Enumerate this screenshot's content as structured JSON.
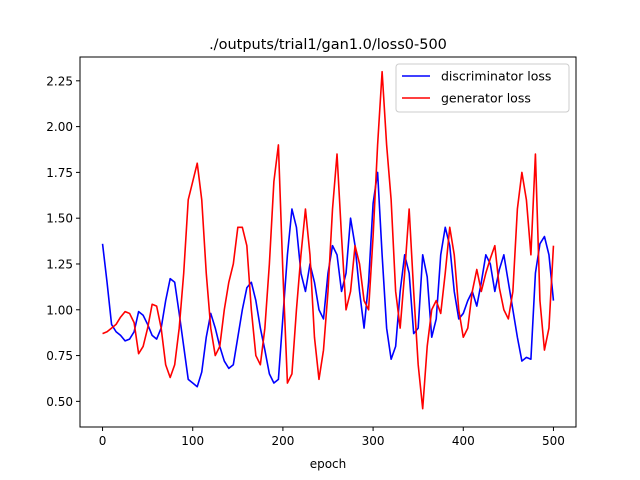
{
  "chart_data": {
    "type": "line",
    "title": "./outputs/trial1/gan1.0/loss0-500",
    "xlabel": "epoch",
    "ylabel": "",
    "xlim": [
      -25,
      525
    ],
    "ylim": [
      0.36,
      2.38
    ],
    "xticks": [
      0,
      100,
      200,
      300,
      400,
      500
    ],
    "xtick_labels": [
      "0",
      "100",
      "200",
      "300",
      "400",
      "500"
    ],
    "yticks": [
      0.5,
      0.75,
      1.0,
      1.25,
      1.5,
      1.75,
      2.0,
      2.25
    ],
    "ytick_labels": [
      "0.50",
      "0.75",
      "1.00",
      "1.25",
      "1.50",
      "1.75",
      "2.00",
      "2.25"
    ],
    "grid": false,
    "legend_position": "top-right",
    "series": [
      {
        "name": "discriminator loss",
        "color": "#0000ff",
        "x": [
          0,
          5,
          10,
          15,
          20,
          25,
          30,
          35,
          40,
          45,
          50,
          55,
          60,
          65,
          70,
          75,
          80,
          85,
          90,
          95,
          100,
          105,
          110,
          115,
          120,
          125,
          130,
          135,
          140,
          145,
          150,
          155,
          160,
          165,
          170,
          175,
          180,
          185,
          190,
          195,
          200,
          205,
          210,
          215,
          220,
          225,
          230,
          235,
          240,
          245,
          250,
          255,
          260,
          265,
          270,
          275,
          280,
          285,
          290,
          295,
          300,
          305,
          310,
          315,
          320,
          325,
          330,
          335,
          340,
          345,
          350,
          355,
          360,
          365,
          370,
          375,
          380,
          385,
          390,
          395,
          400,
          405,
          410,
          415,
          420,
          425,
          430,
          435,
          440,
          445,
          450,
          455,
          460,
          465,
          470,
          475,
          480,
          485,
          490,
          495,
          500
        ],
        "values": [
          1.36,
          1.15,
          0.92,
          0.88,
          0.86,
          0.83,
          0.84,
          0.88,
          0.99,
          0.97,
          0.92,
          0.86,
          0.84,
          0.9,
          1.05,
          1.17,
          1.15,
          0.98,
          0.8,
          0.62,
          0.6,
          0.58,
          0.66,
          0.85,
          0.98,
          0.9,
          0.8,
          0.72,
          0.68,
          0.7,
          0.85,
          1.0,
          1.12,
          1.15,
          1.05,
          0.9,
          0.78,
          0.65,
          0.6,
          0.62,
          0.96,
          1.3,
          1.55,
          1.45,
          1.2,
          1.1,
          1.25,
          1.15,
          1.0,
          0.95,
          1.2,
          1.35,
          1.3,
          1.1,
          1.2,
          1.5,
          1.35,
          1.1,
          0.9,
          1.15,
          1.58,
          1.75,
          1.3,
          0.9,
          0.73,
          0.8,
          1.1,
          1.3,
          1.2,
          0.87,
          0.9,
          1.3,
          1.18,
          0.85,
          0.95,
          1.3,
          1.45,
          1.35,
          1.1,
          0.95,
          0.98,
          1.05,
          1.1,
          1.02,
          1.15,
          1.3,
          1.25,
          1.1,
          1.22,
          1.3,
          1.15,
          1.0,
          0.85,
          0.72,
          0.74,
          0.73,
          1.2,
          1.36,
          1.4,
          1.3,
          1.05
        ]
      },
      {
        "name": "generator loss",
        "color": "#ff0000",
        "x": [
          0,
          5,
          10,
          15,
          20,
          25,
          30,
          35,
          40,
          45,
          50,
          55,
          60,
          65,
          70,
          75,
          80,
          85,
          90,
          95,
          100,
          105,
          110,
          115,
          120,
          125,
          130,
          135,
          140,
          145,
          150,
          155,
          160,
          165,
          170,
          175,
          180,
          185,
          190,
          195,
          200,
          205,
          210,
          215,
          220,
          225,
          230,
          235,
          240,
          245,
          250,
          255,
          260,
          265,
          270,
          275,
          280,
          285,
          290,
          295,
          300,
          305,
          310,
          315,
          320,
          325,
          330,
          335,
          340,
          345,
          350,
          355,
          360,
          365,
          370,
          375,
          380,
          385,
          390,
          395,
          400,
          405,
          410,
          415,
          420,
          425,
          430,
          435,
          440,
          445,
          450,
          455,
          460,
          465,
          470,
          475,
          480,
          485,
          490,
          495,
          500
        ],
        "values": [
          0.87,
          0.88,
          0.9,
          0.92,
          0.96,
          0.99,
          0.98,
          0.93,
          0.76,
          0.8,
          0.9,
          1.03,
          1.02,
          0.9,
          0.7,
          0.63,
          0.7,
          0.9,
          1.2,
          1.6,
          1.7,
          1.8,
          1.6,
          1.2,
          0.9,
          0.75,
          0.8,
          1.0,
          1.15,
          1.25,
          1.45,
          1.45,
          1.35,
          1.0,
          0.75,
          0.7,
          0.9,
          1.25,
          1.7,
          1.9,
          1.2,
          0.6,
          0.65,
          1.0,
          1.3,
          1.55,
          1.3,
          0.85,
          0.62,
          0.78,
          1.1,
          1.55,
          1.85,
          1.4,
          1.0,
          1.1,
          1.35,
          1.25,
          1.05,
          1.0,
          1.4,
          1.9,
          2.3,
          1.9,
          1.6,
          1.1,
          0.9,
          1.2,
          1.55,
          1.1,
          0.7,
          0.46,
          0.8,
          1.0,
          1.05,
          0.98,
          1.2,
          1.45,
          1.3,
          1.0,
          0.85,
          0.9,
          1.1,
          1.22,
          1.1,
          1.2,
          1.28,
          1.35,
          1.12,
          1.0,
          0.95,
          1.1,
          1.55,
          1.75,
          1.6,
          1.3,
          1.85,
          1.05,
          0.78,
          0.9,
          1.35
        ]
      }
    ]
  }
}
